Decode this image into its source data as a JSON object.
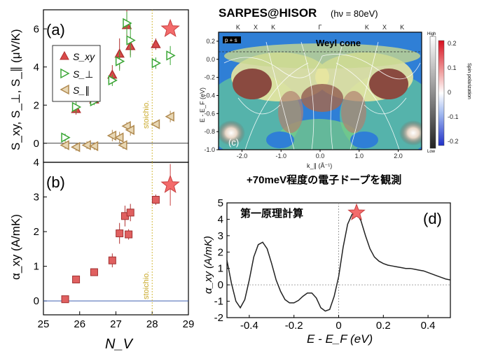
{
  "chart_data": [
    {
      "id": "a",
      "type": "scatter",
      "panel_label": "(a)",
      "ylabel": "S_xy, S_⊥, S_∥ (μV/K)",
      "ylim": [
        -1,
        7
      ],
      "xlim": [
        25,
        29
      ],
      "yticks": [
        "0",
        "2",
        "4",
        "6"
      ],
      "stoich_label": "stoichio.",
      "stoich_x": 28,
      "legend": {
        "placement": "top-left",
        "entries": [
          "S_xy",
          "S_⊥",
          "S_∥"
        ]
      },
      "colors": {
        "S_xy": "#d94a4a",
        "S_perp": "#3aa635",
        "S_par": "#c8a060",
        "star": "#f36b6b"
      },
      "series": [
        {
          "name": "S_xy",
          "marker": "triangle-up",
          "points": [
            [
              25.9,
              1.8
            ],
            [
              26.4,
              2.3
            ],
            [
              26.9,
              3.6
            ],
            [
              27.1,
              4.7
            ],
            [
              27.3,
              6.2
            ],
            [
              27.4,
              5.1
            ],
            [
              28.1,
              5.2
            ]
          ],
          "err": [
            0.3,
            0.2,
            0.5,
            0.8,
            0.8,
            0.5,
            0.3
          ]
        },
        {
          "name": "S_⊥",
          "marker": "triangle-right",
          "points": [
            [
              25.6,
              0.3
            ],
            [
              25.9,
              1.9
            ],
            [
              26.4,
              2.2
            ],
            [
              26.9,
              3.3
            ],
            [
              27.1,
              4.3
            ],
            [
              27.3,
              6.3
            ],
            [
              27.4,
              5.4
            ],
            [
              28.1,
              4.2
            ],
            [
              28.5,
              4.6
            ]
          ],
          "err": [
            0.2,
            0.3,
            0.2,
            0.3,
            0.5,
            0.6,
            0.9,
            0.3,
            0.5
          ]
        },
        {
          "name": "S_∥",
          "marker": "triangle-left",
          "points": [
            [
              25.6,
              -0.1
            ],
            [
              25.9,
              -0.2
            ],
            [
              26.2,
              -0.1
            ],
            [
              26.4,
              -0.15
            ],
            [
              26.9,
              0.4
            ],
            [
              27.1,
              0.3
            ],
            [
              27.2,
              -0.1
            ],
            [
              27.3,
              0.9
            ],
            [
              27.4,
              0.7
            ],
            [
              28.1,
              1.0
            ],
            [
              28.5,
              1.4
            ]
          ],
          "err": [
            0.2,
            0.2,
            0.2,
            0.2,
            0.3,
            0.3,
            0.2,
            0.2,
            0.3,
            0.1,
            0.3
          ]
        }
      ],
      "star": [
        28.5,
        6.0
      ]
    },
    {
      "id": "b",
      "type": "scatter",
      "panel_label": "(b)",
      "ylabel": "α_xy (A/mK)",
      "xlabel": "N_V",
      "ylim": [
        -0.4,
        4
      ],
      "xlim": [
        25,
        29
      ],
      "yticks": [
        "0",
        "1",
        "2",
        "3",
        "4"
      ],
      "xticks": [
        "25",
        "26",
        "27",
        "28",
        "29"
      ],
      "stoich_label": "stoichio.",
      "stoich_x": 28,
      "series": [
        {
          "name": "α_xy",
          "marker": "square",
          "points": [
            [
              25.6,
              0.05
            ],
            [
              25.9,
              0.62
            ],
            [
              26.4,
              0.83
            ],
            [
              26.9,
              1.17
            ],
            [
              27.1,
              1.95
            ],
            [
              27.25,
              2.45
            ],
            [
              27.35,
              1.92
            ],
            [
              27.4,
              2.55
            ],
            [
              28.1,
              2.92
            ]
          ],
          "err": [
            0.05,
            0.08,
            0.08,
            0.2,
            0.3,
            0.3,
            0.15,
            0.25,
            0.15
          ]
        }
      ],
      "star": [
        28.5,
        3.35
      ],
      "star_err": 0.6
    },
    {
      "id": "c",
      "type": "heatmap",
      "header_title": "SARPES@HISOR",
      "header_sub": "(hν = 80eV)",
      "ylabel": "E - E_F (eV)",
      "xlabel": "k_∥ (Å⁻¹)",
      "xticks": [
        "-2.0",
        "-1.0",
        "0.0",
        "1.0",
        "2.0"
      ],
      "yticks": [
        "0.2",
        "0.0",
        "-0.2",
        "-0.4",
        "-0.6",
        "-0.8",
        "-1.0"
      ],
      "top_labels": [
        "K",
        "X",
        "K",
        "Γ",
        "K",
        "X",
        "K"
      ],
      "annotation": "Weyl cone",
      "inset_label": "p + s",
      "panel_label": "(c)",
      "colorbar": {
        "label": "Spin polarization",
        "ticks": [
          "0.2",
          "0.1",
          "0",
          "-0.1",
          "-0.2"
        ],
        "high": "High",
        "low": "Low"
      },
      "caption": "+70meV程度の電子ドープを観測"
    },
    {
      "id": "d",
      "type": "line",
      "panel_label": "(d)",
      "title_jp": "第一原理計算",
      "xlabel": "E - E_F (eV)",
      "ylabel": "α_xy (A/mK)",
      "xlim": [
        -0.5,
        0.5
      ],
      "ylim": [
        -2,
        5
      ],
      "xticks": [
        "-0.4",
        "-0.2",
        "0",
        "0.2",
        "0.4"
      ],
      "yticks": [
        "5",
        "4",
        "3",
        "2",
        "1",
        "0",
        "-1",
        "-2"
      ],
      "x": [
        -0.5,
        -0.48,
        -0.46,
        -0.44,
        -0.42,
        -0.4,
        -0.38,
        -0.36,
        -0.34,
        -0.32,
        -0.3,
        -0.28,
        -0.26,
        -0.24,
        -0.22,
        -0.2,
        -0.18,
        -0.16,
        -0.14,
        -0.12,
        -0.1,
        -0.08,
        -0.06,
        -0.04,
        -0.02,
        0.0,
        0.02,
        0.04,
        0.06,
        0.08,
        0.1,
        0.12,
        0.14,
        0.16,
        0.18,
        0.2,
        0.22,
        0.24,
        0.26,
        0.28,
        0.3,
        0.32,
        0.34,
        0.36,
        0.38,
        0.4,
        0.42,
        0.44,
        0.46,
        0.48,
        0.5
      ],
      "y": [
        1.5,
        0.1,
        -1.0,
        -1.4,
        -0.9,
        0.3,
        1.7,
        2.45,
        2.6,
        2.2,
        1.3,
        0.3,
        -0.4,
        -0.9,
        -1.1,
        -1.1,
        -0.95,
        -0.7,
        -0.5,
        -0.5,
        -0.8,
        -1.4,
        -1.6,
        -1.5,
        -0.7,
        0.5,
        2.3,
        3.7,
        4.3,
        4.4,
        3.9,
        3.0,
        2.2,
        1.7,
        1.45,
        1.3,
        1.2,
        1.15,
        1.1,
        1.05,
        1.0,
        1.0,
        0.95,
        0.9,
        0.85,
        0.75,
        0.65,
        0.55,
        0.45,
        0.35,
        0.3
      ],
      "star": [
        0.08,
        4.4
      ]
    }
  ]
}
